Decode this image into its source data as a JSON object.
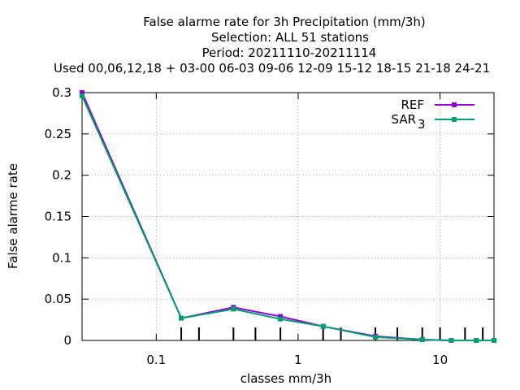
{
  "chart_data": {
    "type": "line",
    "title_lines": [
      "False alarme rate  for 3h Precipitation (mm/3h)",
      "Selection: ALL     51 stations",
      "Period: 20211110-20211114",
      "Used  00,06,12,18  + 03-00 06-03 09-06 12-09 15-12 18-15 21-18 24-21"
    ],
    "xlabel": "classes mm/3h",
    "ylabel": "False alarme rate",
    "xscale": "log",
    "xlim": [
      0.03,
      24
    ],
    "ylim": [
      0,
      0.3
    ],
    "x_ticks": [
      {
        "value": 0.1,
        "label": "0.1"
      },
      {
        "value": 1,
        "label": "1"
      },
      {
        "value": 10,
        "label": "10"
      }
    ],
    "y_ticks": [
      {
        "value": 0,
        "label": "0"
      },
      {
        "value": 0.05,
        "label": "0.05"
      },
      {
        "value": 0.1,
        "label": "0.1"
      },
      {
        "value": 0.15,
        "label": "0.15"
      },
      {
        "value": 0.2,
        "label": "0.2"
      },
      {
        "value": 0.25,
        "label": "0.25"
      },
      {
        "value": 0.3,
        "label": "0.3"
      }
    ],
    "grid": true,
    "legend_position": "top-right",
    "x": [
      0.03,
      0.15,
      0.35,
      0.75,
      1.5,
      3.5,
      7.5,
      12,
      18,
      24
    ],
    "series": [
      {
        "name": "REF",
        "color": "#9400d3",
        "values": [
          0.3,
          0.027,
          0.04,
          0.029,
          0.017,
          0.005,
          0.001,
          0.0,
          0.0,
          0.0
        ]
      },
      {
        "name": "SAR",
        "name_sub": "3",
        "color": "#009e73",
        "values": [
          0.296,
          0.027,
          0.038,
          0.026,
          0.017,
          0.004,
          0.001,
          0.0,
          0.0,
          0.0
        ]
      }
    ],
    "vertical_markers": [
      0.15,
      0.2,
      0.35,
      0.5,
      0.75,
      1.5,
      2,
      3.5,
      5,
      7.5,
      10,
      15,
      20,
      25
    ]
  }
}
